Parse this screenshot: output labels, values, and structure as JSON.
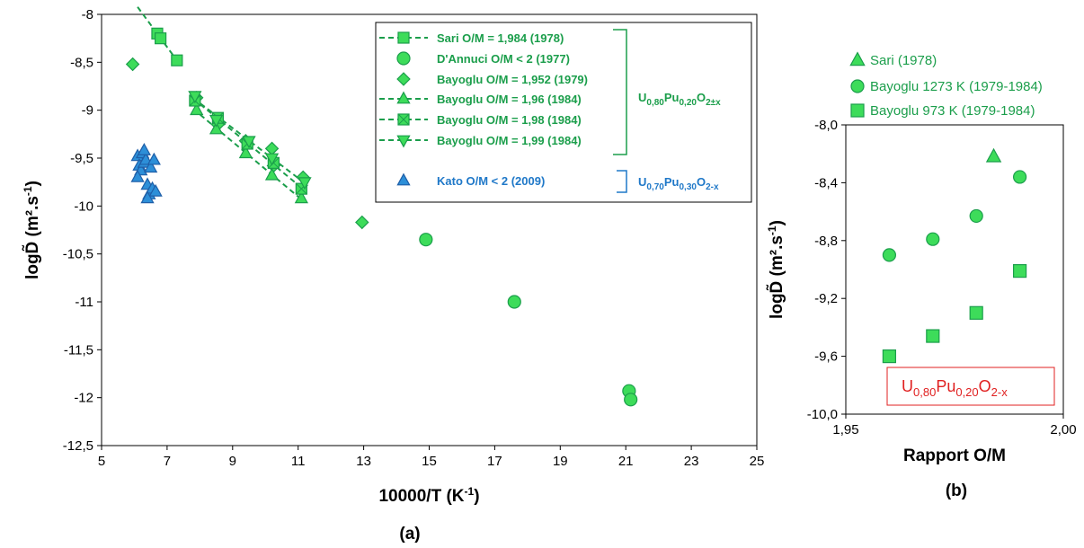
{
  "chart_data": [
    {
      "type": "scatter",
      "panel_label": "(a)",
      "xlabel": "10000/T (K",
      "xlabel_sup": "-1",
      "xlabel_end": ")",
      "ylabel": "logD̃ (m².s",
      "ylabel_sup": "-1",
      "ylabel_end": ")",
      "xlim": [
        5,
        25
      ],
      "ylim": [
        -12.5,
        -8
      ],
      "xticks": [
        5,
        7,
        9,
        11,
        13,
        15,
        17,
        19,
        21,
        23,
        25
      ],
      "xtick_labels": [
        "5",
        "7",
        "9",
        "11",
        "13",
        "15",
        "17",
        "19",
        "21",
        "23",
        "25"
      ],
      "yticks": [
        -8,
        -8.5,
        -9,
        -9.5,
        -10,
        -10.5,
        -11,
        -11.5,
        -12,
        -12.5
      ],
      "ytick_labels": [
        "-8",
        "-8,5",
        "-9",
        "-9,5",
        "-10",
        "-10,5",
        "-11",
        "-11,5",
        "-12",
        "-12,5"
      ],
      "legend_position": "top-right",
      "series": [
        {
          "name": "Sari O/M = 1,984 (1978)",
          "marker": "square",
          "color": "#3ddc5a",
          "fit_line": true,
          "fit_x": [
            6.1,
            7.3
          ],
          "points": [
            [
              6.7,
              -8.2
            ],
            [
              6.8,
              -8.25
            ],
            [
              7.3,
              -8.48
            ]
          ]
        },
        {
          "name": "D'Annuci O/M < 2 (1977)",
          "marker": "circle",
          "color": "#3ddc5a",
          "fit_line": false,
          "points": [
            [
              14.9,
              -10.35
            ],
            [
              17.6,
              -11.0
            ],
            [
              21.1,
              -11.93
            ],
            [
              21.15,
              -12.02
            ]
          ]
        },
        {
          "name": "Bayoglu O/M = 1,952 (1979)",
          "marker": "diamond",
          "color": "#3ddc5a",
          "fit_line": false,
          "points": [
            [
              5.95,
              -8.52
            ],
            [
              7.9,
              -8.87
            ],
            [
              8.55,
              -9.15
            ],
            [
              9.4,
              -9.32
            ],
            [
              10.2,
              -9.4
            ],
            [
              10.25,
              -9.58
            ],
            [
              11.15,
              -9.7
            ],
            [
              12.95,
              -10.17
            ]
          ]
        },
        {
          "name": "Bayoglu O/M = 1,96 (1984)",
          "marker": "triangle-up",
          "color": "#3ddc5a",
          "fit_line": true,
          "fit_x": [
            7.8,
            11.2
          ],
          "points": [
            [
              7.9,
              -9.0
            ],
            [
              8.5,
              -9.2
            ],
            [
              9.4,
              -9.45
            ],
            [
              10.2,
              -9.68
            ],
            [
              11.1,
              -9.92
            ]
          ]
        },
        {
          "name": "Bayoglu O/M = 1,98 (1984)",
          "marker": "square-x",
          "color": "#3ddc5a",
          "fit_line": true,
          "fit_x": [
            7.8,
            11.2
          ],
          "points": [
            [
              7.85,
              -8.9
            ],
            [
              8.55,
              -9.08
            ],
            [
              9.45,
              -9.35
            ],
            [
              10.25,
              -9.55
            ],
            [
              11.1,
              -9.82
            ]
          ]
        },
        {
          "name": "Bayoglu O/M = 1,99 (1984)",
          "marker": "triangle-down",
          "color": "#3ddc5a",
          "fit_line": true,
          "fit_x": [
            7.8,
            11.3
          ],
          "points": [
            [
              7.85,
              -8.85
            ],
            [
              8.5,
              -9.1
            ],
            [
              9.5,
              -9.32
            ],
            [
              10.2,
              -9.5
            ],
            [
              11.2,
              -9.75
            ]
          ]
        },
        {
          "name": "Kato O/M < 2 (2009)",
          "marker": "triangle-up",
          "color": "#2d8fd8",
          "fit_line": false,
          "points": [
            [
              6.1,
              -9.48
            ],
            [
              6.15,
              -9.58
            ],
            [
              6.2,
              -9.63
            ],
            [
              6.25,
              -9.45
            ],
            [
              6.3,
              -9.55
            ],
            [
              6.35,
              -9.52
            ],
            [
              6.4,
              -9.78
            ],
            [
              6.45,
              -9.88
            ],
            [
              6.5,
              -9.6
            ],
            [
              6.55,
              -9.82
            ],
            [
              6.6,
              -9.52
            ],
            [
              6.65,
              -9.85
            ],
            [
              6.1,
              -9.7
            ],
            [
              6.4,
              -9.92
            ],
            [
              6.3,
              -9.42
            ]
          ]
        }
      ],
      "annotations": [
        {
          "text_main": "U",
          "sub1": "0,80",
          "text2": "Pu",
          "sub2": "0,20",
          "text3": "O",
          "sub3": "2±x",
          "color": "#1b9e4b"
        },
        {
          "text_main": "U",
          "sub1": "0,70",
          "text2": "Pu",
          "sub2": "0,30",
          "text3": "O",
          "sub3": "2-x",
          "color": "#1f78c8"
        }
      ]
    },
    {
      "type": "scatter",
      "panel_label": "(b)",
      "xlabel": "Rapport O/M",
      "ylabel": "logD̃ (m².s",
      "ylabel_sup": "-1",
      "ylabel_end": ")",
      "xlim": [
        1.95,
        2.0
      ],
      "ylim": [
        -10.0,
        -8.0
      ],
      "xticks": [
        1.95,
        2.0
      ],
      "xtick_labels": [
        "1,95",
        "2,00"
      ],
      "yticks": [
        -8.0,
        -8.4,
        -8.8,
        -9.2,
        -9.6,
        -10.0
      ],
      "ytick_labels": [
        "-8,0",
        "-8,4",
        "-8,8",
        "-9,2",
        "-9,6",
        "-10,0"
      ],
      "legend_position": "top",
      "series": [
        {
          "name": "Sari (1978)",
          "marker": "triangle-up",
          "color": "#3ddc5a",
          "points": [
            [
              1.984,
              -8.22
            ]
          ]
        },
        {
          "name": "Bayoglu 1273 K (1979-1984)",
          "marker": "circle",
          "color": "#3ddc5a",
          "points": [
            [
              1.96,
              -8.9
            ],
            [
              1.97,
              -8.79
            ],
            [
              1.98,
              -8.63
            ],
            [
              1.99,
              -8.36
            ]
          ]
        },
        {
          "name": "Bayoglu 973 K (1979-1984)",
          "marker": "square",
          "color": "#3ddc5a",
          "points": [
            [
              1.96,
              -9.6
            ],
            [
              1.97,
              -9.46
            ],
            [
              1.98,
              -9.3
            ],
            [
              1.99,
              -9.01
            ]
          ]
        }
      ],
      "annotation": {
        "text_main": "U",
        "sub1": "0,80",
        "text2": "Pu",
        "sub2": "0,20",
        "text3": "O",
        "sub3": "2-x",
        "color": "#e02020"
      }
    }
  ]
}
